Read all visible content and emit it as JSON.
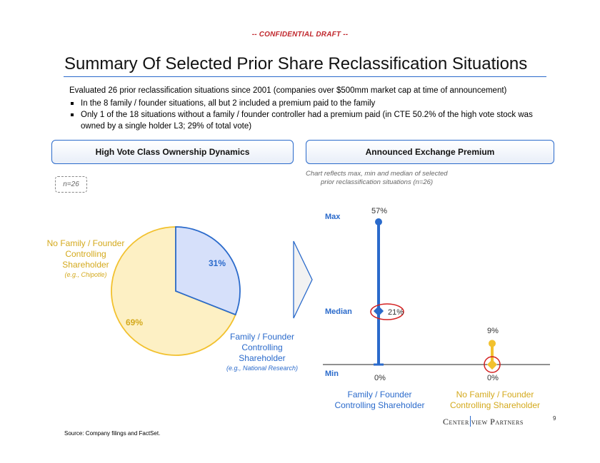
{
  "header": {
    "confidential": "-- CONFIDENTIAL DRAFT --"
  },
  "title": "Summary Of Selected Prior Share Reclassification Situations",
  "summary": {
    "intro": "Evaluated 26 prior reclassification situations since 2001 (companies over $500mm market cap at time of announcement)",
    "bullets": [
      "In the 8 family / founder situations, all but 2 included a premium paid to the family",
      "Only 1 of the 18 situations without a family / founder controller had a premium paid (in CTE 50.2% of the high vote stock was owned by a single holder L3; 29% of total vote)"
    ]
  },
  "left_panel": {
    "header": "High Vote Class Ownership Dynamics",
    "n_badge": "n=26",
    "no_family_label": "No Family / Founder Controlling Shareholder",
    "no_family_example": "(e.g., Chipotle)",
    "family_label": "Family / Founder Controlling Shareholder",
    "family_example": "(e.g., National Research)",
    "pct_family": "31%",
    "pct_no_family": "69%"
  },
  "right_panel": {
    "header": "Announced Exchange Premium",
    "note_line1": "Chart reflects max, min and median of selected",
    "note_line2": "prior reclassification situations (n=26)",
    "axis_max": "Max",
    "axis_median": "Median",
    "axis_min": "Min",
    "label_max_family": "57%",
    "label_median_family": "21%",
    "label_min_family": "0%",
    "label_max_nofamily": "9%",
    "label_min_nofamily": "0%",
    "cat_family": "Family / Founder Controlling Shareholder",
    "cat_nofamily": "No Family / Founder Controlling Shareholder"
  },
  "colors": {
    "blue": "#2a6acb",
    "yellow": "#f2c12e",
    "red": "#d42020",
    "light_blue": "#d6e0fa",
    "light_yellow": "#fdf0c4"
  },
  "chart_data": [
    {
      "type": "pie",
      "categories": [
        "Family / Founder Controlling Shareholder",
        "No Family / Founder Controlling Shareholder"
      ],
      "values": [
        31,
        69
      ],
      "value_unit": "%"
    },
    {
      "type": "scatter",
      "subtype": "range",
      "categories": [
        "Family / Founder Controlling Shareholder",
        "No Family / Founder Controlling Shareholder"
      ],
      "series": [
        {
          "name": "Max",
          "values": [
            57,
            9
          ]
        },
        {
          "name": "Median",
          "values": [
            21,
            0
          ]
        },
        {
          "name": "Min",
          "values": [
            0,
            0
          ]
        }
      ],
      "value_unit": "%",
      "ylim": [
        0,
        57
      ]
    }
  ],
  "footer": {
    "logo_left": "Center",
    "logo_right": "view Partners",
    "page_number": "9",
    "source": "Source: Company filings and FactSet."
  }
}
